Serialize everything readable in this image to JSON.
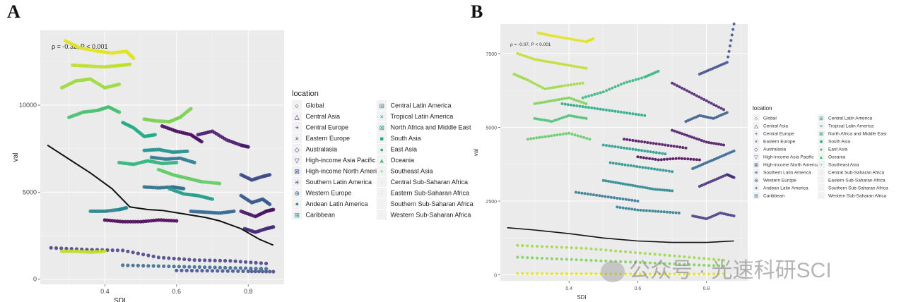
{
  "panels": {
    "a": {
      "letter": "A",
      "annotation": "ρ = -0.32, P < 0.001"
    },
    "b": {
      "letter": "B",
      "annotation": "ρ = -0.07, P < 0.001"
    }
  },
  "watermark": {
    "text": "公众号 · 光速科研SCI"
  },
  "legend": {
    "title": "location",
    "items": [
      {
        "name": "Global",
        "symbol": "○",
        "color": "#440154"
      },
      {
        "name": "Central Asia",
        "symbol": "△",
        "color": "#46085c"
      },
      {
        "name": "Central Europe",
        "symbol": "+",
        "color": "#471063"
      },
      {
        "name": "Eastern Europe",
        "symbol": "×",
        "color": "#481a6c"
      },
      {
        "name": "Australasia",
        "symbol": "◇",
        "color": "#472a7a"
      },
      {
        "name": "High-income Asia Pacific",
        "symbol": "▽",
        "color": "#433d84"
      },
      {
        "name": "High-income North America",
        "symbol": "⊠",
        "color": "#3e4a89"
      },
      {
        "name": "Southern Latin America",
        "symbol": "✳",
        "color": "#38598c"
      },
      {
        "name": "Western Europe",
        "symbol": "⊕",
        "color": "#32658e"
      },
      {
        "name": "Andean Latin America",
        "symbol": "✦",
        "color": "#2d718e"
      },
      {
        "name": "Caribbean",
        "symbol": "⊞",
        "color": "#297b8e"
      },
      {
        "name": "Central Latin America",
        "symbol": "⊞",
        "color": "#25858e"
      },
      {
        "name": "Tropical Latin America",
        "symbol": "×",
        "color": "#21918c"
      },
      {
        "name": "North Africa and Middle East",
        "symbol": "⊠",
        "color": "#1f9a8a"
      },
      {
        "name": "South Asia",
        "symbol": "■",
        "color": "#22a884"
      },
      {
        "name": "East Asia",
        "symbol": "●",
        "color": "#2fb47c"
      },
      {
        "name": "Oceania",
        "symbol": "▲",
        "color": "#44bf70"
      },
      {
        "name": "Southeast Asia",
        "symbol": "+",
        "color": "#5ec962"
      },
      {
        "name": "Central Sub-Saharan Africa",
        "symbol": "·",
        "color": "#7ad151"
      },
      {
        "name": "Eastern Sub-Saharan Africa",
        "symbol": "·",
        "color": "#9bd93c"
      },
      {
        "name": "Southern Sub-Saharan Africa",
        "symbol": "·",
        "color": "#bddf26"
      },
      {
        "name": "Western Sub-Saharan Africa",
        "symbol": "·",
        "color": "#e1e31a"
      }
    ]
  },
  "chart_data": [
    {
      "type": "scatter",
      "title": "A",
      "xlabel": "SDI",
      "ylabel": "val",
      "xlim": [
        0.22,
        0.9
      ],
      "ylim": [
        -300,
        14300
      ],
      "xticks": [
        0.4,
        0.6,
        0.8
      ],
      "yticks": [
        0,
        5000,
        10000
      ],
      "ytick_labels": [
        "0",
        "5000",
        "10000"
      ],
      "smooth": {
        "x": [
          0.24,
          0.3,
          0.36,
          0.42,
          0.47,
          0.52,
          0.56,
          0.62,
          0.68,
          0.72,
          0.78,
          0.83,
          0.87
        ],
        "y": [
          7700,
          6900,
          6100,
          5200,
          4150,
          4000,
          3950,
          3750,
          3550,
          3350,
          2900,
          2300,
          1950
        ]
      },
      "series": [
        {
          "name": "Western Sub-Saharan Africa",
          "x": [
            0.29,
            0.33,
            0.38,
            0.42,
            0.46,
            0.48
          ],
          "y": [
            13700,
            13300,
            13100,
            13000,
            13100,
            12700
          ]
        },
        {
          "name": "Southern Sub-Saharan Africa",
          "x": [
            0.31,
            0.35,
            0.4,
            0.44,
            0.47
          ],
          "y": [
            12300,
            12250,
            12200,
            12280,
            12350
          ]
        },
        {
          "name": "Eastern Sub-Saharan Africa",
          "x": [
            0.28,
            0.32,
            0.36,
            0.4,
            0.44
          ],
          "y": [
            11000,
            11400,
            11500,
            11000,
            11200
          ]
        },
        {
          "name": "Central Sub-Saharan Africa",
          "x": [
            0.51,
            0.54,
            0.58,
            0.61,
            0.64
          ],
          "y": [
            9200,
            9100,
            9050,
            9300,
            9800
          ]
        },
        {
          "name": "Oceania",
          "x": [
            0.3,
            0.34,
            0.38,
            0.41,
            0.44
          ],
          "y": [
            9300,
            9600,
            9700,
            9900,
            9600
          ]
        },
        {
          "name": "South Asia",
          "x": [
            0.45,
            0.48,
            0.51,
            0.54
          ],
          "y": [
            9000,
            8700,
            8200,
            8300
          ]
        },
        {
          "name": "Central Asia",
          "x": [
            0.56,
            0.6,
            0.64,
            0.67
          ],
          "y": [
            8800,
            8500,
            8300,
            7900
          ]
        },
        {
          "name": "Eastern Europe",
          "x": [
            0.66,
            0.7,
            0.74,
            0.78,
            0.8
          ],
          "y": [
            8300,
            8500,
            8000,
            7700,
            7600
          ]
        },
        {
          "name": "Tropical Latin America",
          "x": [
            0.51,
            0.55,
            0.59,
            0.63
          ],
          "y": [
            7400,
            7450,
            7300,
            7350
          ]
        },
        {
          "name": "Caribbean",
          "x": [
            0.53,
            0.57,
            0.61,
            0.65
          ],
          "y": [
            7000,
            6900,
            6950,
            6700
          ]
        },
        {
          "name": "East Asia",
          "x": [
            0.44,
            0.48,
            0.52,
            0.56,
            0.6
          ],
          "y": [
            6700,
            6600,
            6800,
            6650,
            6700
          ]
        },
        {
          "name": "Southeast Asia",
          "x": [
            0.55,
            0.59,
            0.63,
            0.67,
            0.72
          ],
          "y": [
            6300,
            6000,
            5800,
            5600,
            5500
          ]
        },
        {
          "name": "Andean Latin America",
          "x": [
            0.51,
            0.55,
            0.59,
            0.62
          ],
          "y": [
            5300,
            5250,
            5300,
            5200
          ]
        },
        {
          "name": "North Africa and Middle East",
          "x": [
            0.58,
            0.62,
            0.66,
            0.7
          ],
          "y": [
            5200,
            4900,
            4800,
            4600
          ]
        },
        {
          "name": "High-income North America",
          "x": [
            0.78,
            0.81,
            0.84,
            0.86
          ],
          "y": [
            6000,
            5700,
            5900,
            6000
          ]
        },
        {
          "name": "Southern Latin America",
          "x": [
            0.78,
            0.81,
            0.84,
            0.86
          ],
          "y": [
            4800,
            4400,
            4600,
            4300
          ]
        },
        {
          "name": "Central Europe",
          "x": [
            0.78,
            0.82,
            0.85,
            0.87
          ],
          "y": [
            3900,
            3600,
            3900,
            4000
          ]
        },
        {
          "name": "Western Europe",
          "x": [
            0.64,
            0.68,
            0.72,
            0.76
          ],
          "y": [
            3900,
            3850,
            3800,
            3900
          ]
        },
        {
          "name": "Australasia",
          "x": [
            0.79,
            0.82,
            0.85,
            0.87
          ],
          "y": [
            2900,
            2700,
            2900,
            3000
          ]
        },
        {
          "name": "Central Latin America",
          "x": [
            0.36,
            0.4,
            0.44,
            0.46
          ],
          "y": [
            3900,
            3900,
            4000,
            4100
          ]
        },
        {
          "name": "Global",
          "x": [
            0.4,
            0.45,
            0.5,
            0.55,
            0.6
          ],
          "y": [
            3400,
            3300,
            3300,
            3400,
            3350
          ]
        },
        {
          "name": "High-income Asia Pacific",
          "x": [
            0.25,
            0.35,
            0.45,
            0.55,
            0.65,
            0.75,
            0.85
          ],
          "y": [
            1800,
            1700,
            1650,
            1250,
            1100,
            1050,
            900
          ]
        },
        {
          "name": "Southern Sub-Saharan Africa (low)",
          "x": [
            0.28,
            0.32,
            0.36,
            0.4
          ],
          "y": [
            1600,
            1600,
            1550,
            1600
          ]
        },
        {
          "name": "Western Europe (low)",
          "x": [
            0.45,
            0.55,
            0.65,
            0.75,
            0.85
          ],
          "y": [
            800,
            750,
            700,
            650,
            600
          ]
        },
        {
          "name": "High-income North America (low)",
          "x": [
            0.6,
            0.7,
            0.8,
            0.87
          ],
          "y": [
            500,
            480,
            450,
            430
          ]
        }
      ]
    },
    {
      "type": "scatter",
      "title": "B",
      "xlabel": "SDI",
      "ylabel": "val",
      "xlim": [
        0.2,
        0.92
      ],
      "ylim": [
        -200,
        8500
      ],
      "xticks": [
        0.4,
        0.6,
        0.8
      ],
      "yticks": [
        0,
        2500,
        5000,
        7500
      ],
      "ytick_labels": [
        "0",
        "2500",
        "5000",
        "7500"
      ],
      "smooth": {
        "x": [
          0.22,
          0.3,
          0.4,
          0.5,
          0.6,
          0.7,
          0.8,
          0.88
        ],
        "y": [
          1600,
          1520,
          1400,
          1250,
          1150,
          1100,
          1100,
          1150
        ]
      },
      "series": [
        {
          "name": "Western Sub-Saharan Africa",
          "x": [
            0.31,
            0.35,
            0.4,
            0.45,
            0.47
          ],
          "y": [
            8200,
            8100,
            8000,
            7900,
            8000
          ]
        },
        {
          "name": "Southern Sub-Saharan Africa",
          "x": [
            0.25,
            0.3,
            0.35,
            0.4,
            0.45
          ],
          "y": [
            7500,
            7300,
            7200,
            7100,
            7000
          ]
        },
        {
          "name": "Eastern Sub-Saharan Africa",
          "x": [
            0.24,
            0.28,
            0.33,
            0.38,
            0.44
          ],
          "y": [
            6800,
            6600,
            6300,
            6400,
            6500
          ]
        },
        {
          "name": "Central Sub-Saharan Africa",
          "x": [
            0.3,
            0.35,
            0.4,
            0.45
          ],
          "y": [
            5800,
            5900,
            6000,
            5800
          ]
        },
        {
          "name": "Oceania",
          "x": [
            0.3,
            0.35,
            0.4,
            0.45
          ],
          "y": [
            5300,
            5200,
            5400,
            5300
          ]
        },
        {
          "name": "Southeast Asia",
          "x": [
            0.28,
            0.34,
            0.4,
            0.46
          ],
          "y": [
            4600,
            4700,
            4800,
            4600
          ]
        },
        {
          "name": "East Asia",
          "x": [
            0.44,
            0.5,
            0.56,
            0.62,
            0.66
          ],
          "y": [
            6000,
            6200,
            6500,
            6700,
            6900
          ]
        },
        {
          "name": "South Asia",
          "x": [
            0.38,
            0.44,
            0.5,
            0.56,
            0.62
          ],
          "y": [
            5800,
            5700,
            5600,
            5500,
            5400
          ]
        },
        {
          "name": "North Africa and Middle East",
          "x": [
            0.5,
            0.56,
            0.62,
            0.68
          ],
          "y": [
            4400,
            4300,
            4200,
            4100
          ]
        },
        {
          "name": "Tropical Latin America",
          "x": [
            0.52,
            0.58,
            0.64,
            0.7
          ],
          "y": [
            3800,
            3700,
            3600,
            3500
          ]
        },
        {
          "name": "Central Latin America",
          "x": [
            0.5,
            0.55,
            0.6,
            0.65,
            0.7
          ],
          "y": [
            3200,
            3100,
            3000,
            2900,
            2850
          ]
        },
        {
          "name": "Andean Latin America",
          "x": [
            0.42,
            0.48,
            0.54,
            0.6
          ],
          "y": [
            2800,
            2700,
            2600,
            2500
          ]
        },
        {
          "name": "Caribbean",
          "x": [
            0.54,
            0.6,
            0.66,
            0.72
          ],
          "y": [
            2300,
            2200,
            2150,
            2100
          ]
        },
        {
          "name": "Central Asia",
          "x": [
            0.56,
            0.62,
            0.68,
            0.74
          ],
          "y": [
            4600,
            4500,
            4400,
            4300
          ]
        },
        {
          "name": "Eastern Europe",
          "x": [
            0.7,
            0.75,
            0.8,
            0.85
          ],
          "y": [
            6500,
            6200,
            5900,
            5600
          ]
        },
        {
          "name": "Central Europe",
          "x": [
            0.7,
            0.75,
            0.8,
            0.85
          ],
          "y": [
            4900,
            4700,
            4500,
            4400
          ]
        },
        {
          "name": "High-income North America",
          "x": [
            0.78,
            0.82,
            0.86,
            0.88
          ],
          "y": [
            6800,
            7000,
            7200,
            8500
          ]
        },
        {
          "name": "Southern Latin America",
          "x": [
            0.74,
            0.78,
            0.82,
            0.86
          ],
          "y": [
            5200,
            5400,
            5300,
            5500
          ]
        },
        {
          "name": "Western Europe",
          "x": [
            0.76,
            0.8,
            0.84,
            0.88
          ],
          "y": [
            3600,
            3800,
            4000,
            4200
          ]
        },
        {
          "name": "Australasia",
          "x": [
            0.78,
            0.82,
            0.86,
            0.88
          ],
          "y": [
            3000,
            3200,
            3400,
            3300
          ]
        },
        {
          "name": "High-income Asia Pacific",
          "x": [
            0.76,
            0.8,
            0.84,
            0.88
          ],
          "y": [
            2000,
            1900,
            2100,
            2000
          ]
        },
        {
          "name": "Global",
          "x": [
            0.6,
            0.66,
            0.72,
            0.78
          ],
          "y": [
            4000,
            3900,
            3950,
            3900
          ]
        },
        {
          "name": "Eastern Sub-Saharan Africa (low)",
          "x": [
            0.25,
            0.35,
            0.45,
            0.55,
            0.65,
            0.75,
            0.85
          ],
          "y": [
            1000,
            950,
            900,
            800,
            700,
            600,
            500
          ]
        },
        {
          "name": "Central Sub-Saharan Africa (low)",
          "x": [
            0.25,
            0.35,
            0.45,
            0.55,
            0.65,
            0.75,
            0.85
          ],
          "y": [
            600,
            550,
            500,
            450,
            400,
            350,
            300
          ]
        },
        {
          "name": "Western Sub-Saharan Africa (low)",
          "x": [
            0.25,
            0.35,
            0.45,
            0.55,
            0.65,
            0.75,
            0.85
          ],
          "y": [
            50,
            40,
            40,
            30,
            30,
            30,
            30
          ]
        }
      ]
    }
  ]
}
